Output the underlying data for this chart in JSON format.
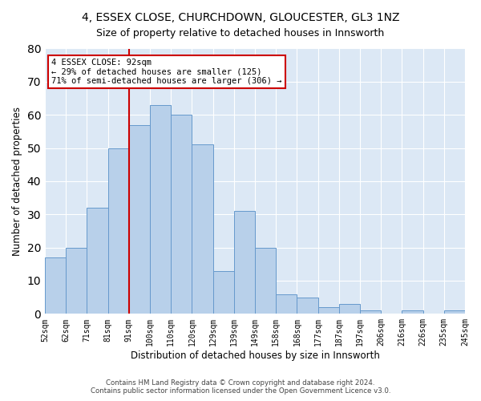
{
  "title1": "4, ESSEX CLOSE, CHURCHDOWN, GLOUCESTER, GL3 1NZ",
  "title2": "Size of property relative to detached houses in Innsworth",
  "xlabel": "Distribution of detached houses by size in Innsworth",
  "ylabel": "Number of detached properties",
  "bin_labels": [
    "52sqm",
    "62sqm",
    "71sqm",
    "81sqm",
    "91sqm",
    "100sqm",
    "110sqm",
    "120sqm",
    "129sqm",
    "139sqm",
    "149sqm",
    "158sqm",
    "168sqm",
    "177sqm",
    "187sqm",
    "197sqm",
    "206sqm",
    "216sqm",
    "226sqm",
    "235sqm",
    "245sqm"
  ],
  "bar_heights": [
    17,
    20,
    32,
    50,
    57,
    63,
    60,
    51,
    13,
    31,
    20,
    6,
    5,
    2,
    3,
    1,
    0,
    1,
    0,
    1
  ],
  "bar_color": "#b8d0ea",
  "bar_edge_color": "#6699cc",
  "vline_color": "#cc0000",
  "vline_x_index": 4,
  "annotation_text": "4 ESSEX CLOSE: 92sqm\n← 29% of detached houses are smaller (125)\n71% of semi-detached houses are larger (306) →",
  "annotation_box_color": "#ffffff",
  "annotation_box_edge_color": "#cc0000",
  "ylim": [
    0,
    80
  ],
  "yticks": [
    0,
    10,
    20,
    30,
    40,
    50,
    60,
    70,
    80
  ],
  "background_color": "#dce8f5",
  "grid_color": "#ffffff",
  "footer1": "Contains HM Land Registry data © Crown copyright and database right 2024.",
  "footer2": "Contains public sector information licensed under the Open Government Licence v3.0."
}
